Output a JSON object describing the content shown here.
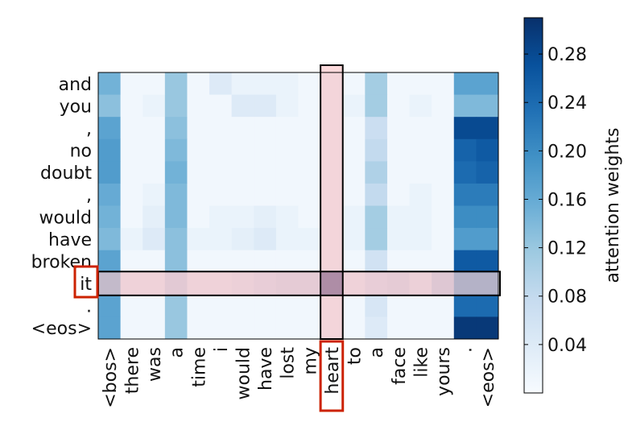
{
  "chart_data": {
    "type": "heatmap",
    "title": "",
    "xlabel": "",
    "ylabel": "",
    "x_tokens": [
      "<bos>",
      "there",
      "was",
      "a",
      "time",
      "i",
      "would",
      "have",
      "lost",
      "my",
      "heart",
      "to",
      "a",
      "face",
      "like",
      "yours",
      ".",
      "<eos>"
    ],
    "y_tokens": [
      "and",
      "you",
      ",",
      "no",
      "doubt",
      ",",
      "would",
      "have",
      "broken",
      "it",
      ".",
      "<eos>"
    ],
    "values": [
      [
        0.15,
        0.01,
        0.01,
        0.12,
        0.01,
        0.04,
        0.02,
        0.02,
        0.02,
        0.01,
        0.01,
        0.01,
        0.11,
        0.01,
        0.01,
        0.01,
        0.17,
        0.17
      ],
      [
        0.13,
        0.01,
        0.02,
        0.12,
        0.01,
        0.01,
        0.04,
        0.04,
        0.02,
        0.01,
        0.01,
        0.02,
        0.11,
        0.01,
        0.02,
        0.01,
        0.14,
        0.14
      ],
      [
        0.17,
        0.01,
        0.01,
        0.13,
        0.01,
        0.01,
        0.01,
        0.01,
        0.01,
        0.01,
        0.01,
        0.01,
        0.07,
        0.01,
        0.01,
        0.01,
        0.28,
        0.28
      ],
      [
        0.18,
        0.01,
        0.01,
        0.14,
        0.01,
        0.01,
        0.01,
        0.01,
        0.01,
        0.01,
        0.01,
        0.01,
        0.08,
        0.01,
        0.01,
        0.01,
        0.25,
        0.26
      ],
      [
        0.18,
        0.01,
        0.01,
        0.15,
        0.01,
        0.01,
        0.01,
        0.01,
        0.01,
        0.01,
        0.01,
        0.01,
        0.1,
        0.01,
        0.01,
        0.01,
        0.24,
        0.25
      ],
      [
        0.16,
        0.01,
        0.02,
        0.14,
        0.01,
        0.01,
        0.01,
        0.01,
        0.01,
        0.01,
        0.01,
        0.01,
        0.08,
        0.01,
        0.02,
        0.01,
        0.22,
        0.22
      ],
      [
        0.15,
        0.01,
        0.03,
        0.14,
        0.01,
        0.02,
        0.02,
        0.03,
        0.02,
        0.01,
        0.01,
        0.02,
        0.11,
        0.02,
        0.02,
        0.01,
        0.2,
        0.2
      ],
      [
        0.14,
        0.02,
        0.04,
        0.13,
        0.02,
        0.02,
        0.03,
        0.04,
        0.02,
        0.02,
        0.01,
        0.02,
        0.11,
        0.02,
        0.02,
        0.01,
        0.18,
        0.18
      ],
      [
        0.17,
        0.01,
        0.01,
        0.13,
        0.01,
        0.01,
        0.01,
        0.01,
        0.01,
        0.01,
        0.01,
        0.01,
        0.06,
        0.01,
        0.01,
        0.01,
        0.26,
        0.26
      ],
      [
        0.12,
        0.02,
        0.02,
        0.06,
        0.02,
        0.02,
        0.03,
        0.04,
        0.05,
        0.05,
        0.28,
        0.02,
        0.04,
        0.05,
        0.03,
        0.07,
        0.14,
        0.14
      ],
      [
        0.17,
        0.01,
        0.01,
        0.12,
        0.01,
        0.01,
        0.01,
        0.01,
        0.01,
        0.01,
        0.01,
        0.01,
        0.05,
        0.01,
        0.01,
        0.01,
        0.24,
        0.24
      ],
      [
        0.17,
        0.01,
        0.01,
        0.12,
        0.01,
        0.01,
        0.01,
        0.01,
        0.01,
        0.01,
        0.01,
        0.01,
        0.04,
        0.01,
        0.01,
        0.01,
        0.3,
        0.3
      ]
    ],
    "vmin": 0.0,
    "vmax": 0.31,
    "colormap": [
      "#f7fbff",
      "#deebf7",
      "#c6dbef",
      "#9ecae1",
      "#6baed6",
      "#4292c6",
      "#2171b5",
      "#08519c",
      "#08306b"
    ],
    "colorbar": {
      "label": "attention weights",
      "ticks": [
        0.04,
        0.08,
        0.12,
        0.16,
        0.2,
        0.24,
        0.28
      ],
      "tick_labels": [
        "0.04",
        "0.08",
        "0.12",
        "0.16",
        "0.20",
        "0.24",
        "0.28"
      ]
    },
    "highlight": {
      "row_token": "it",
      "column_token": "heart",
      "overlay_color": "#f7aab0",
      "box_color": "#cc2200",
      "frame_color": "#000000"
    }
  }
}
